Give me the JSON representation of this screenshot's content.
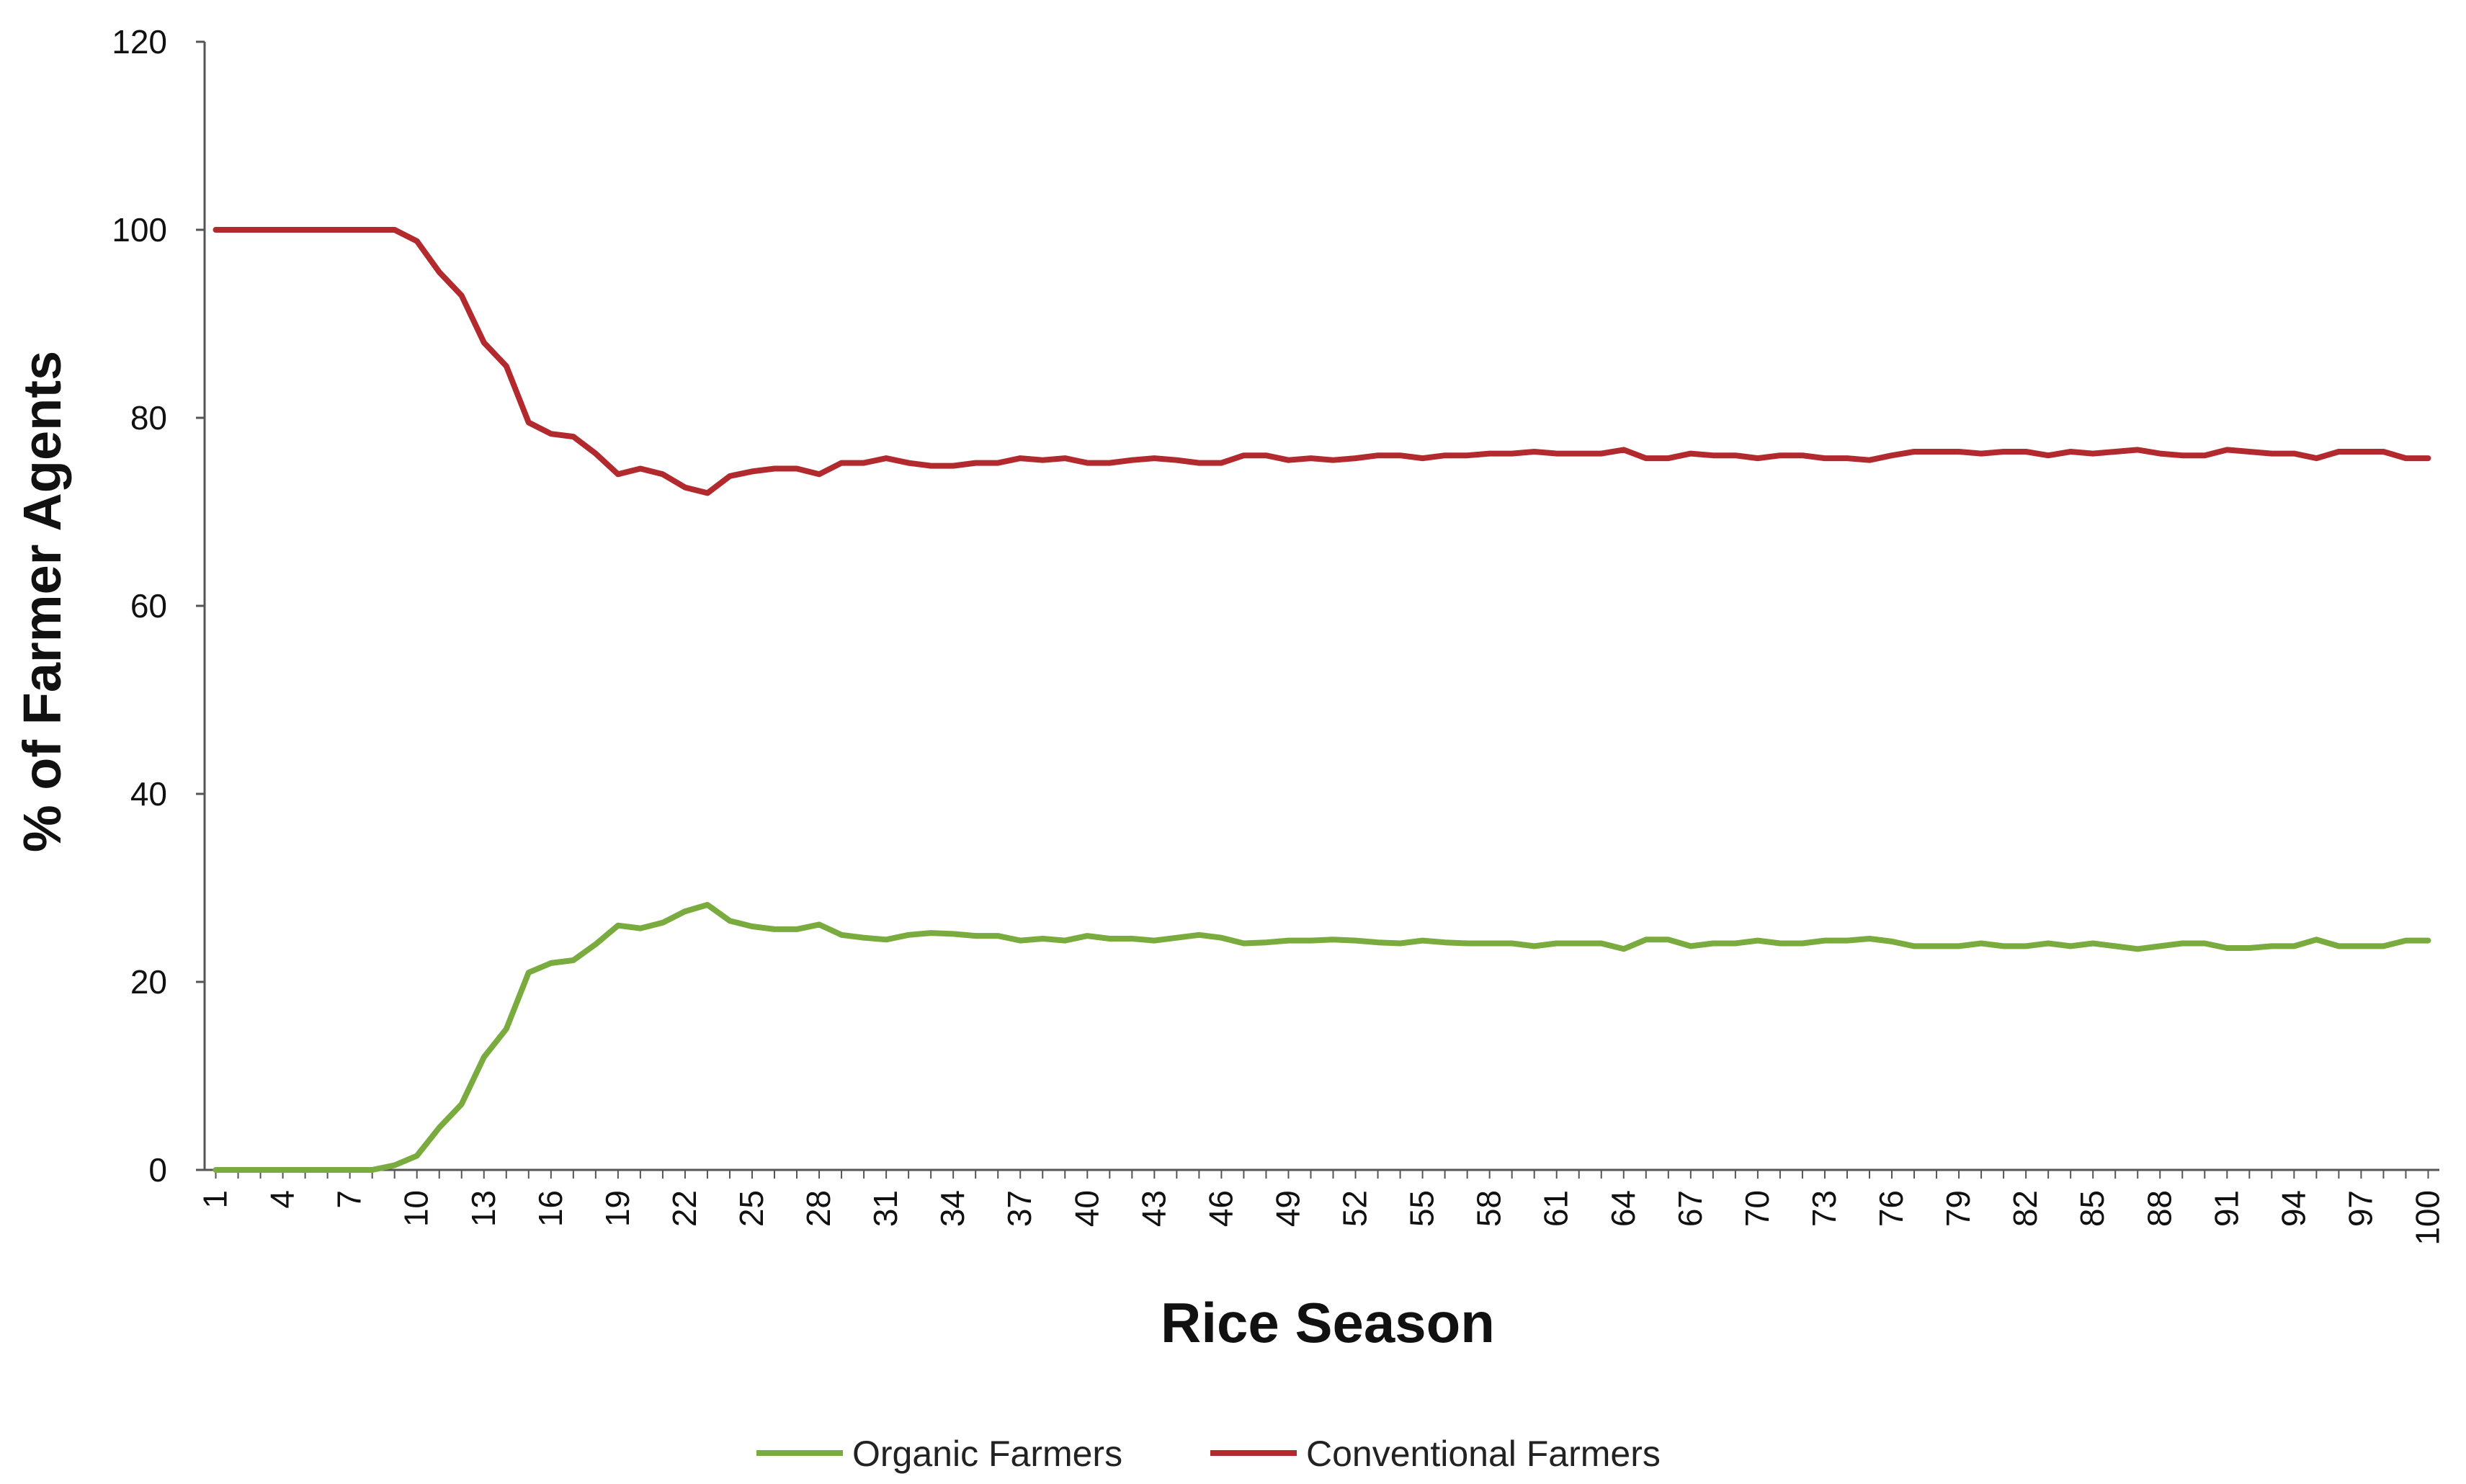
{
  "chart_data": {
    "type": "line",
    "xlabel": "Rice Season",
    "ylabel": "% of Farmer Agents",
    "ylim": [
      0,
      120
    ],
    "yticks": [
      0,
      20,
      40,
      60,
      80,
      100,
      120
    ],
    "xlim": [
      1,
      100
    ],
    "xticks": [
      1,
      4,
      7,
      10,
      13,
      16,
      19,
      22,
      25,
      28,
      31,
      34,
      37,
      40,
      43,
      46,
      49,
      52,
      55,
      58,
      61,
      64,
      67,
      70,
      73,
      76,
      79,
      82,
      85,
      88,
      91,
      94,
      97,
      100
    ],
    "grid": false,
    "legend_position": "bottom",
    "series": [
      {
        "name": "Organic Farmers",
        "color": "#7aab3f",
        "x": [
          1,
          2,
          3,
          4,
          5,
          6,
          7,
          8,
          9,
          10,
          11,
          12,
          13,
          14,
          15,
          16,
          17,
          18,
          19,
          20,
          21,
          22,
          23,
          24,
          25,
          26,
          27,
          28,
          29,
          30,
          31,
          32,
          33,
          34,
          35,
          36,
          37,
          38,
          39,
          40,
          41,
          42,
          43,
          44,
          45,
          46,
          47,
          48,
          49,
          50,
          51,
          52,
          53,
          54,
          55,
          56,
          57,
          58,
          59,
          60,
          61,
          62,
          63,
          64,
          65,
          66,
          67,
          68,
          69,
          70,
          71,
          72,
          73,
          74,
          75,
          76,
          77,
          78,
          79,
          80,
          81,
          82,
          83,
          84,
          85,
          86,
          87,
          88,
          89,
          90,
          91,
          92,
          93,
          94,
          95,
          96,
          97,
          98,
          99,
          100
        ],
        "values": [
          0,
          0,
          0,
          0,
          0,
          0,
          0,
          0,
          0.5,
          1.5,
          4.5,
          7,
          12,
          15,
          21,
          22,
          22.3,
          24,
          26,
          25.7,
          26.3,
          27.5,
          28.2,
          26.5,
          25.9,
          25.6,
          25.6,
          26.1,
          25,
          24.7,
          24.5,
          25,
          25.2,
          25.1,
          24.9,
          24.9,
          24.4,
          24.6,
          24.4,
          24.9,
          24.6,
          24.6,
          24.4,
          24.7,
          25,
          24.7,
          24.1,
          24.2,
          24.4,
          24.4,
          24.5,
          24.4,
          24.2,
          24.1,
          24.4,
          24.2,
          24.1,
          24.1,
          24.1,
          23.8,
          24.1,
          24.1,
          24.1,
          23.5,
          24.5,
          24.5,
          23.8,
          24.1,
          24.1,
          24.4,
          24.1,
          24.1,
          24.4,
          24.4,
          24.6,
          24.3,
          23.8,
          23.8,
          23.8,
          24.1,
          23.8,
          23.8,
          24.1,
          23.8,
          24.1,
          23.8,
          23.5,
          23.8,
          24.1,
          24.1,
          23.6,
          23.6,
          23.8,
          23.8,
          24.5,
          23.8,
          23.8,
          23.8,
          24.4,
          24.4
        ]
      },
      {
        "name": "Conventional Farmers",
        "color": "#b22a2e",
        "x": [
          1,
          2,
          3,
          4,
          5,
          6,
          7,
          8,
          9,
          10,
          11,
          12,
          13,
          14,
          15,
          16,
          17,
          18,
          19,
          20,
          21,
          22,
          23,
          24,
          25,
          26,
          27,
          28,
          29,
          30,
          31,
          32,
          33,
          34,
          35,
          36,
          37,
          38,
          39,
          40,
          41,
          42,
          43,
          44,
          45,
          46,
          47,
          48,
          49,
          50,
          51,
          52,
          53,
          54,
          55,
          56,
          57,
          58,
          59,
          60,
          61,
          62,
          63,
          64,
          65,
          66,
          67,
          68,
          69,
          70,
          71,
          72,
          73,
          74,
          75,
          76,
          77,
          78,
          79,
          80,
          81,
          82,
          83,
          84,
          85,
          86,
          87,
          88,
          89,
          90,
          91,
          92,
          93,
          94,
          95,
          96,
          97,
          98,
          99,
          100
        ],
        "values": [
          100,
          100,
          100,
          100,
          100,
          100,
          100,
          100,
          100,
          98.8,
          95.5,
          93,
          88,
          85.5,
          79.5,
          78.3,
          78,
          76.2,
          74,
          74.6,
          74,
          72.6,
          72,
          73.8,
          74.3,
          74.6,
          74.6,
          74,
          75.2,
          75.2,
          75.7,
          75.2,
          74.9,
          74.9,
          75.2,
          75.2,
          75.7,
          75.5,
          75.7,
          75.2,
          75.2,
          75.5,
          75.7,
          75.5,
          75.2,
          75.2,
          76,
          76,
          75.5,
          75.7,
          75.5,
          75.7,
          76,
          76,
          75.7,
          76,
          76,
          76.2,
          76.2,
          76.4,
          76.2,
          76.2,
          76.2,
          76.6,
          75.7,
          75.7,
          76.2,
          76,
          76,
          75.7,
          76,
          76,
          75.7,
          75.7,
          75.5,
          76,
          76.4,
          76.4,
          76.4,
          76.2,
          76.4,
          76.4,
          76,
          76.4,
          76.2,
          76.4,
          76.6,
          76.2,
          76,
          76,
          76.6,
          76.4,
          76.2,
          76.2,
          75.7,
          76.4,
          76.4,
          76.4,
          75.7,
          75.7
        ]
      }
    ]
  }
}
